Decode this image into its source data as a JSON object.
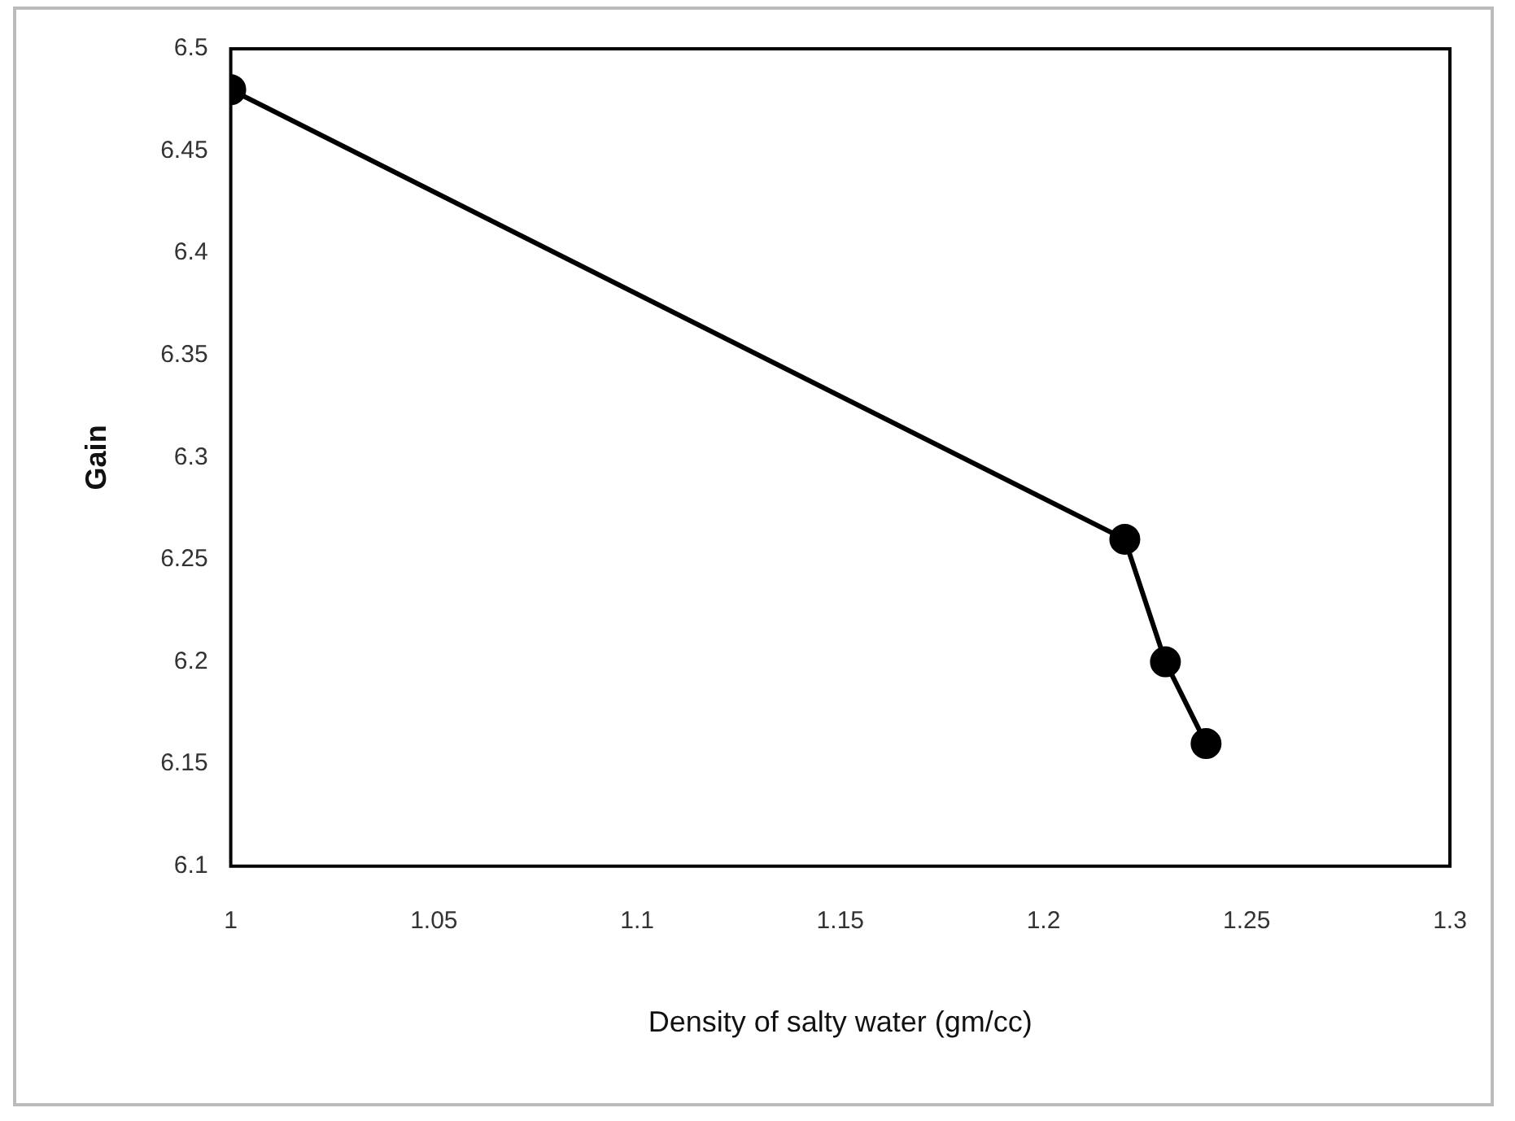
{
  "chart_data": {
    "type": "line",
    "xlabel": "Density of salty water (gm/cc)",
    "ylabel": "Gain",
    "x": [
      1,
      1.22,
      1.23,
      1.24
    ],
    "series": [
      {
        "color": "#000000",
        "values": [
          6.48,
          6.26,
          6.2,
          6.16
        ]
      }
    ],
    "xlim": [
      1,
      1.3
    ],
    "xticks": [
      1,
      1.05,
      1.1,
      1.15,
      1.2,
      1.25,
      1.3
    ],
    "ylim": [
      6.1,
      6.5
    ],
    "yticks": [
      6.1,
      6.15,
      6.2,
      6.25,
      6.3,
      6.35,
      6.4,
      6.45,
      6.5
    ],
    "grid": false,
    "legend": false,
    "marker": "circle",
    "line_style": "solid"
  }
}
